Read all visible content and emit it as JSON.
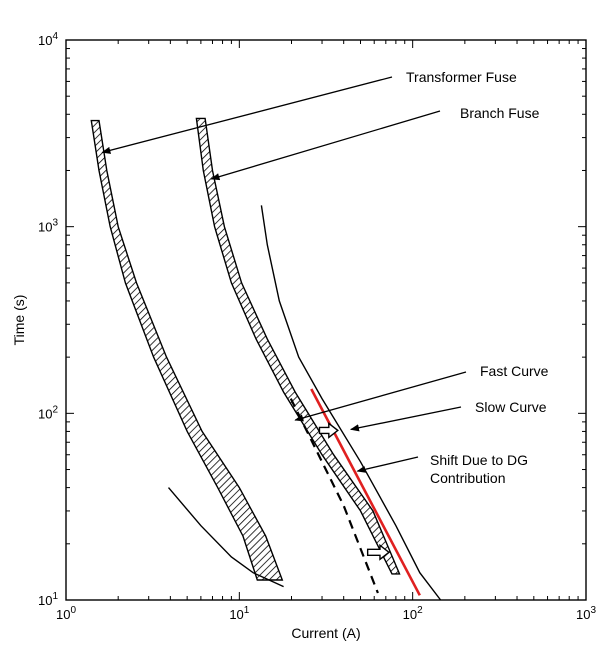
{
  "chart_data": {
    "type": "line",
    "title": "",
    "xlabel": "Current (A)",
    "ylabel": "Time (s)",
    "xscale": "log",
    "yscale": "log",
    "xlim": [
      1,
      1000
    ],
    "ylim": [
      10,
      10000
    ],
    "grid": false,
    "legend": "none",
    "x_tick_labels": [
      {
        "value": 1,
        "base": "10",
        "exp": "0"
      },
      {
        "value": 10,
        "base": "10",
        "exp": "1"
      },
      {
        "value": 100,
        "base": "10",
        "exp": "2"
      },
      {
        "value": 1000,
        "base": "10",
        "exp": "3"
      }
    ],
    "y_tick_labels": [
      {
        "value": 10,
        "base": "10",
        "exp": "1"
      },
      {
        "value": 100,
        "base": "10",
        "exp": "2"
      },
      {
        "value": 1000,
        "base": "10",
        "exp": "3"
      },
      {
        "value": 10000,
        "base": "10",
        "exp": "4"
      }
    ],
    "bands": [
      {
        "id": "transformer-fuse",
        "min_curve": [
          [
            1.4,
            3700
          ],
          [
            1.55,
            2000
          ],
          [
            1.8,
            1000
          ],
          [
            2.2,
            500
          ],
          [
            3.2,
            200
          ],
          [
            5.0,
            80
          ],
          [
            7.5,
            40
          ],
          [
            10.5,
            22
          ],
          [
            12.7,
            12.8
          ]
        ],
        "max_curve": [
          [
            1.55,
            3700
          ],
          [
            1.72,
            2000
          ],
          [
            2.0,
            1000
          ],
          [
            2.55,
            500
          ],
          [
            3.8,
            200
          ],
          [
            6.1,
            80
          ],
          [
            10.0,
            40
          ],
          [
            14.2,
            22
          ],
          [
            17.7,
            12.8
          ]
        ]
      },
      {
        "id": "branch-fuse",
        "min_curve": [
          [
            5.65,
            3800
          ],
          [
            6.2,
            2000
          ],
          [
            7.2,
            1000
          ],
          [
            9.0,
            500
          ],
          [
            12.5,
            250
          ],
          [
            18.0,
            130
          ],
          [
            30.0,
            60
          ],
          [
            50.0,
            30
          ],
          [
            76.0,
            13.8
          ]
        ],
        "max_curve": [
          [
            6.35,
            3800
          ],
          [
            7.0,
            2000
          ],
          [
            8.2,
            1000
          ],
          [
            10.3,
            500
          ],
          [
            14.5,
            250
          ],
          [
            21.0,
            130
          ],
          [
            35.0,
            60
          ],
          [
            59.0,
            30
          ],
          [
            84.0,
            13.8
          ]
        ]
      }
    ],
    "series": [
      {
        "id": "slow-curve-upper",
        "style": "solid",
        "color": "#000000",
        "points": [
          [
            13.4,
            1300
          ],
          [
            14.5,
            800
          ],
          [
            17.0,
            400
          ],
          [
            22.0,
            200
          ],
          [
            30.0,
            120
          ],
          [
            50.0,
            55
          ],
          [
            80.0,
            25
          ],
          [
            110,
            14
          ],
          [
            145,
            10
          ]
        ]
      },
      {
        "id": "slow-curve-lower",
        "style": "solid",
        "color": "#000000",
        "points": [
          [
            3.9,
            40
          ],
          [
            6.0,
            25
          ],
          [
            9.0,
            17
          ],
          [
            12.0,
            14
          ],
          [
            18.0,
            11.8
          ]
        ]
      },
      {
        "id": "fast-curve",
        "style": "dashed",
        "color": "#000000",
        "points": [
          [
            19.8,
            120
          ],
          [
            40.0,
            32
          ],
          [
            63.0,
            10.9
          ]
        ]
      },
      {
        "id": "shift-due-to-dg",
        "style": "solid",
        "color": "#e02020",
        "points": [
          [
            26.0,
            135
          ],
          [
            110.0,
            10.6
          ]
        ]
      }
    ],
    "arrows": [
      {
        "from": [
          29,
          81
        ],
        "to": [
          37,
          81
        ],
        "style": "hollow"
      },
      {
        "from": [
          55,
          18
        ],
        "to": [
          73,
          18
        ],
        "style": "hollow"
      }
    ],
    "annotations": [
      {
        "id": "transformer-fuse-label",
        "text": "Transformer Fuse",
        "target": [
          1.62,
          2500
        ]
      },
      {
        "id": "branch-fuse-label",
        "text": "Branch Fuse",
        "target": [
          6.9,
          1800
        ]
      },
      {
        "id": "fast-curve-label",
        "text": "Fast Curve",
        "target": [
          21.0,
          92
        ]
      },
      {
        "id": "slow-curve-label",
        "text": "Slow Curve",
        "target": [
          44.0,
          82
        ]
      },
      {
        "id": "shift-label",
        "text": [
          "Shift Due to DG",
          "Contribution"
        ],
        "target": [
          48.0,
          49
        ]
      }
    ]
  }
}
